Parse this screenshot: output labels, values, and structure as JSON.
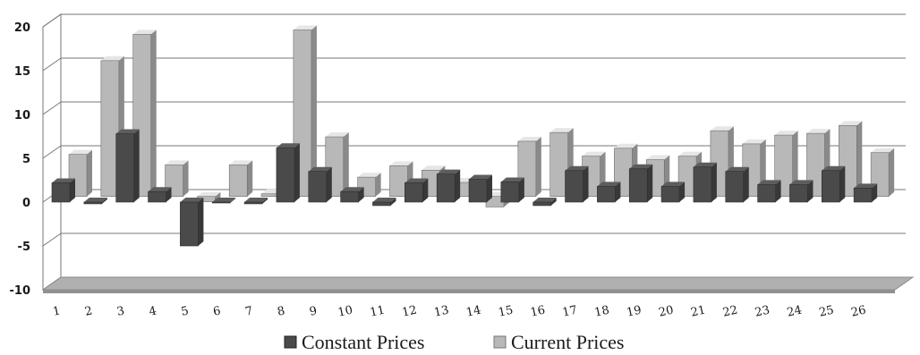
{
  "chart_data": {
    "type": "bar",
    "categories": [
      "1",
      "2",
      "3",
      "4",
      "5",
      "6",
      "7",
      "8",
      "9",
      "10",
      "11",
      "12",
      "13",
      "14",
      "15",
      "16",
      "17",
      "18",
      "19",
      "20",
      "21",
      "22",
      "23",
      "24",
      "25",
      "26"
    ],
    "series": [
      {
        "name": "Constant Prices",
        "color": "#4a4a4a",
        "values": [
          2.2,
          -0.2,
          7.8,
          1.2,
          -5.0,
          -0.1,
          -0.2,
          6.2,
          3.5,
          1.2,
          -0.4,
          2.2,
          3.2,
          2.6,
          2.3,
          -0.4,
          3.6,
          1.8,
          3.8,
          1.8,
          4.0,
          3.5,
          2.0,
          2.0,
          3.6,
          1.6
        ]
      },
      {
        "name": "Current Prices",
        "color": "#b8b8b8",
        "values": [
          4.8,
          15.5,
          18.5,
          3.6,
          -0.6,
          3.6,
          0.3,
          19.0,
          6.8,
          2.2,
          3.5,
          3.0,
          1.6,
          -1.2,
          6.3,
          7.3,
          4.6,
          5.5,
          4.2,
          4.6,
          7.5,
          6.0,
          7.0,
          7.2,
          8.1,
          5.0
        ]
      }
    ],
    "ylim": [
      -10,
      20
    ],
    "yticks": [
      "20",
      "15",
      "10",
      "5",
      "0",
      "-5",
      "-10"
    ],
    "grid": true,
    "legend_position": "bottom",
    "style": "3d-columns"
  }
}
